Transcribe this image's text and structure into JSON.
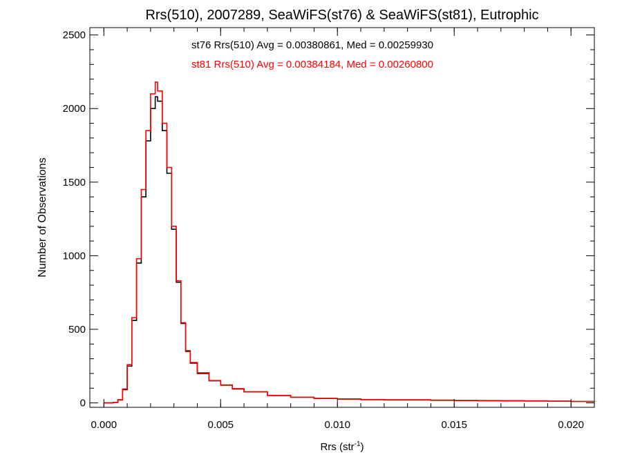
{
  "chart_data": {
    "type": "line",
    "title": "Rrs(510), 2007289, SeaWiFS(st76) & SeaWiFS(st81), Eutrophic",
    "xlabel": "Rrs (str",
    "xlabel_sup": "-1",
    "xlabel_close": ")",
    "ylabel": "Number of Observations",
    "xlim": [
      -0.0006,
      0.021
    ],
    "ylim": [
      -30,
      2550
    ],
    "x_ticks": [
      0.0,
      0.005,
      0.01,
      0.015,
      0.02
    ],
    "x_tick_labels": [
      "0.000",
      "0.005",
      "0.010",
      "0.015",
      "0.020"
    ],
    "y_ticks": [
      0,
      500,
      1000,
      1500,
      2000,
      2500
    ],
    "y_tick_labels": [
      "0",
      "500",
      "1000",
      "1500",
      "2000",
      "2500"
    ],
    "grid": false,
    "series": [
      {
        "name": "st76 Rrs(510) Avg = 0.00380861, Med = 0.00259930",
        "color": "#000000",
        "x": [
          0.0,
          0.0004,
          0.0006,
          0.0008,
          0.001,
          0.0012,
          0.0014,
          0.0016,
          0.0018,
          0.002,
          0.0022,
          0.0023,
          0.0025,
          0.0027,
          0.0029,
          0.0031,
          0.0033,
          0.0035,
          0.0037,
          0.004,
          0.0045,
          0.005,
          0.0055,
          0.006,
          0.007,
          0.008,
          0.009,
          0.01,
          0.011,
          0.012,
          0.013,
          0.014,
          0.015,
          0.016,
          0.017,
          0.018,
          0.019,
          0.02,
          0.021
        ],
        "y": [
          0,
          3,
          20,
          90,
          250,
          560,
          950,
          1400,
          1780,
          2000,
          2080,
          2050,
          1850,
          1560,
          1180,
          820,
          540,
          350,
          270,
          200,
          150,
          120,
          95,
          75,
          50,
          38,
          30,
          26,
          22,
          20,
          20,
          18,
          16,
          15,
          14,
          13,
          12,
          10,
          8
        ]
      },
      {
        "name": "st81 Rrs(510) Avg = 0.00384184, Med = 0.00260800",
        "color": "#ff0000",
        "x": [
          0.0,
          0.0004,
          0.0006,
          0.0008,
          0.001,
          0.0012,
          0.0014,
          0.0016,
          0.0018,
          0.002,
          0.0022,
          0.0023,
          0.0025,
          0.0027,
          0.0029,
          0.0031,
          0.0033,
          0.0035,
          0.0037,
          0.004,
          0.0045,
          0.005,
          0.0055,
          0.006,
          0.007,
          0.008,
          0.009,
          0.01,
          0.011,
          0.012,
          0.013,
          0.014,
          0.015,
          0.016,
          0.017,
          0.018,
          0.019,
          0.02,
          0.021
        ],
        "y": [
          0,
          4,
          22,
          95,
          260,
          580,
          980,
          1450,
          1850,
          2100,
          2180,
          2120,
          1900,
          1600,
          1200,
          830,
          545,
          355,
          275,
          205,
          152,
          122,
          97,
          76,
          51,
          39,
          31,
          27,
          23,
          21,
          21,
          19,
          17,
          16,
          15,
          14,
          12,
          10,
          8
        ]
      }
    ]
  }
}
